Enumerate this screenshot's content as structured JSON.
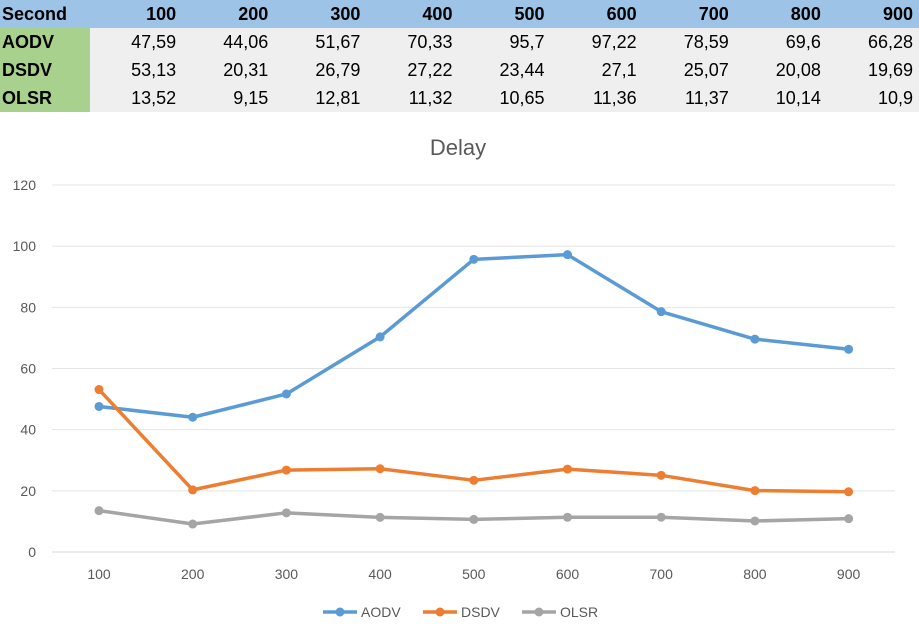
{
  "table": {
    "header_label": "Second",
    "columns": [
      "100",
      "200",
      "300",
      "400",
      "500",
      "600",
      "700",
      "800",
      "900"
    ],
    "rows": [
      {
        "label": "AODV",
        "cells": [
          "47,59",
          "44,06",
          "51,67",
          "70,33",
          "95,7",
          "97,22",
          "78,59",
          "69,6",
          "66,28"
        ]
      },
      {
        "label": "DSDV",
        "cells": [
          "53,13",
          "20,31",
          "26,79",
          "27,22",
          "23,44",
          "27,1",
          "25,07",
          "20,08",
          "19,69"
        ]
      },
      {
        "label": "OLSR",
        "cells": [
          "13,52",
          "9,15",
          "12,81",
          "11,32",
          "10,65",
          "11,36",
          "11,37",
          "10,14",
          "10,9"
        ]
      }
    ]
  },
  "chart_data": {
    "type": "line",
    "title": "Delay",
    "categories": [
      "100",
      "200",
      "300",
      "400",
      "500",
      "600",
      "700",
      "800",
      "900"
    ],
    "ylim": [
      0,
      120
    ],
    "yticks": [
      0,
      20,
      40,
      60,
      80,
      100,
      120
    ],
    "grid": true,
    "legend": "bottom",
    "series": [
      {
        "name": "AODV",
        "color": "#5b9bd5",
        "values": [
          47.59,
          44.06,
          51.67,
          70.33,
          95.7,
          97.22,
          78.59,
          69.6,
          66.28
        ]
      },
      {
        "name": "DSDV",
        "color": "#ed7d31",
        "values": [
          53.13,
          20.31,
          26.79,
          27.22,
          23.44,
          27.1,
          25.07,
          20.08,
          19.69
        ]
      },
      {
        "name": "OLSR",
        "color": "#a5a5a5",
        "values": [
          13.52,
          9.15,
          12.81,
          11.32,
          10.65,
          11.36,
          11.37,
          10.14,
          10.9
        ]
      }
    ]
  }
}
